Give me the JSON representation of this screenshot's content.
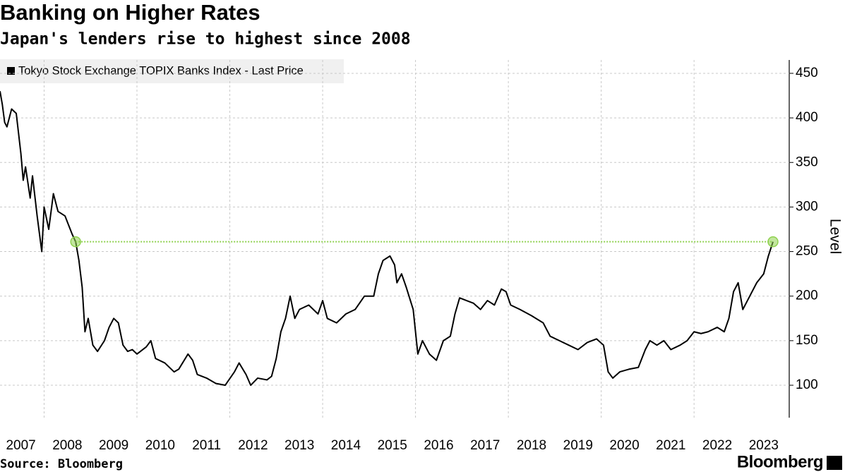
{
  "chart_data": {
    "type": "line",
    "title": "Banking on Higher Rates",
    "subtitle": "Japan's lenders rise to highest since 2008",
    "y_label": "Level",
    "source": "Source: Bloomberg",
    "brand": "Bloomberg",
    "x": [
      2007.05,
      2007.1,
      2007.15,
      2007.2,
      2007.3,
      2007.4,
      2007.5,
      2007.55,
      2007.6,
      2007.7,
      2007.75,
      2007.85,
      2007.95,
      2008.0,
      2008.1,
      2008.2,
      2008.3,
      2008.45,
      2008.6,
      2008.68,
      2008.75,
      2008.82,
      2008.88,
      2008.95,
      2009.05,
      2009.15,
      2009.3,
      2009.4,
      2009.5,
      2009.6,
      2009.7,
      2009.8,
      2009.9,
      2010.0,
      2010.2,
      2010.3,
      2010.4,
      2010.6,
      2010.8,
      2010.9,
      2011.1,
      2011.2,
      2011.3,
      2011.5,
      2011.7,
      2011.9,
      2012.1,
      2012.2,
      2012.35,
      2012.45,
      2012.6,
      2012.8,
      2012.9,
      2013.0,
      2013.1,
      2013.2,
      2013.3,
      2013.4,
      2013.5,
      2013.7,
      2013.9,
      2014.0,
      2014.1,
      2014.3,
      2014.5,
      2014.7,
      2014.9,
      2015.1,
      2015.2,
      2015.3,
      2015.45,
      2015.55,
      2015.6,
      2015.7,
      2015.8,
      2015.95,
      2016.05,
      2016.15,
      2016.3,
      2016.45,
      2016.6,
      2016.75,
      2016.85,
      2016.95,
      2017.1,
      2017.25,
      2017.4,
      2017.55,
      2017.7,
      2017.85,
      2017.95,
      2018.05,
      2018.25,
      2018.5,
      2018.75,
      2018.9,
      2019.1,
      2019.3,
      2019.5,
      2019.7,
      2019.9,
      2020.05,
      2020.15,
      2020.25,
      2020.4,
      2020.6,
      2020.8,
      2020.95,
      2021.05,
      2021.2,
      2021.35,
      2021.5,
      2021.7,
      2021.85,
      2022.0,
      2022.15,
      2022.3,
      2022.5,
      2022.65,
      2022.75,
      2022.85,
      2022.95,
      2023.05,
      2023.2,
      2023.35,
      2023.5,
      2023.6,
      2023.7
    ],
    "series": [
      {
        "name": "Tokyo Stock Exchange TOPIX Banks Index - Last Price",
        "color": "#000000",
        "values": [
          430,
          415,
          395,
          390,
          410,
          405,
          360,
          330,
          345,
          310,
          335,
          290,
          250,
          300,
          275,
          315,
          295,
          290,
          270,
          261,
          240,
          210,
          160,
          175,
          145,
          138,
          150,
          165,
          175,
          170,
          145,
          138,
          140,
          135,
          143,
          150,
          130,
          125,
          115,
          118,
          135,
          128,
          112,
          108,
          102,
          100,
          115,
          125,
          112,
          100,
          108,
          106,
          110,
          130,
          160,
          175,
          200,
          175,
          185,
          190,
          180,
          195,
          175,
          170,
          180,
          185,
          200,
          200,
          225,
          240,
          245,
          235,
          215,
          225,
          210,
          185,
          135,
          150,
          135,
          128,
          150,
          155,
          180,
          198,
          195,
          192,
          185,
          195,
          190,
          208,
          205,
          190,
          185,
          178,
          170,
          155,
          150,
          145,
          140,
          148,
          152,
          145,
          115,
          108,
          115,
          118,
          120,
          140,
          150,
          145,
          150,
          140,
          145,
          150,
          160,
          158,
          160,
          165,
          160,
          175,
          205,
          215,
          185,
          200,
          215,
          225,
          245,
          261
        ]
      }
    ],
    "highlight_level": 261,
    "highlight_x": [
      2008.68,
      2023.7
    ],
    "highlight_color": "#8fd14f",
    "xlim": [
      2007.05,
      2024.05
    ],
    "xticks": [
      {
        "value": 2007.5,
        "label": "2007"
      },
      {
        "value": 2008.5,
        "label": "2008"
      },
      {
        "value": 2009.5,
        "label": "2009"
      },
      {
        "value": 2010.5,
        "label": "2010"
      },
      {
        "value": 2011.5,
        "label": "2011"
      },
      {
        "value": 2012.5,
        "label": "2012"
      },
      {
        "value": 2013.5,
        "label": "2013"
      },
      {
        "value": 2014.5,
        "label": "2014"
      },
      {
        "value": 2015.5,
        "label": "2015"
      },
      {
        "value": 2016.5,
        "label": "2016"
      },
      {
        "value": 2017.5,
        "label": "2017"
      },
      {
        "value": 2018.5,
        "label": "2018"
      },
      {
        "value": 2019.5,
        "label": "2019"
      },
      {
        "value": 2020.5,
        "label": "2020"
      },
      {
        "value": 2021.5,
        "label": "2021"
      },
      {
        "value": 2022.5,
        "label": "2022"
      },
      {
        "value": 2023.5,
        "label": "2023"
      }
    ],
    "xgrid": [
      2008,
      2010,
      2012,
      2014,
      2016,
      2018,
      2020,
      2022
    ],
    "ylim": [
      63.6,
      465
    ],
    "yticks": [
      100,
      150,
      200,
      250,
      300,
      350,
      400,
      450
    ],
    "grid": true
  }
}
